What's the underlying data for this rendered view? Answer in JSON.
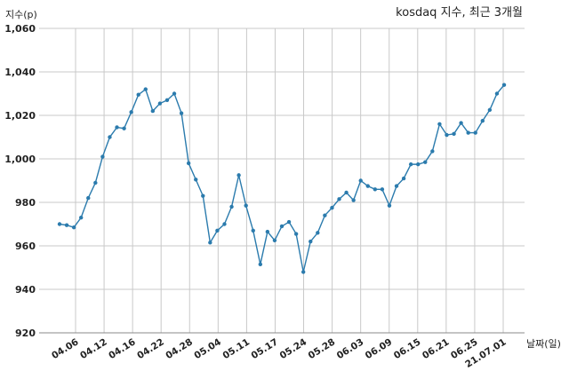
{
  "chart_data": {
    "type": "line",
    "title": "kosdaq 지수, 최근 3개월",
    "ylabel": "지수(p)",
    "xlabel": "날짜(일)",
    "ylim": [
      920,
      1060
    ],
    "yticks": [
      920,
      940,
      960,
      980,
      1000,
      1020,
      1040,
      1060
    ],
    "ytick_labels": [
      "920",
      "940",
      "960",
      "980",
      "1,000",
      "1,020",
      "1,040",
      "1,060"
    ],
    "xticks": [
      "04.06",
      "04.12",
      "04.16",
      "04.22",
      "04.28",
      "05.04",
      "05.11",
      "05.17",
      "05.24",
      "05.28",
      "06.03",
      "06.09",
      "06.15",
      "06.21",
      "06.25",
      "21.07.01"
    ],
    "grid": true,
    "color": "#2b7bad",
    "series": [
      {
        "values": [
          970,
          969.5,
          968.5,
          973,
          982,
          989,
          1001,
          1010,
          1014.5,
          1014,
          1021.5,
          1029.5,
          1032,
          1022,
          1025.5,
          1027,
          1030,
          1021,
          998,
          990.5,
          983,
          961.5,
          967,
          970,
          978,
          992.5,
          978.5,
          967,
          951.5,
          966.5,
          962.5,
          969,
          971,
          965.5,
          948,
          962,
          966,
          974,
          977.5,
          981.5,
          984.5,
          981,
          990,
          987.5,
          986,
          986,
          978.5,
          987.5,
          991,
          997.5,
          997.5,
          998.5,
          1003.5,
          1016,
          1011,
          1011.5,
          1016.5,
          1012,
          1012,
          1017.5,
          1022.5,
          1030,
          1034
        ]
      }
    ]
  }
}
